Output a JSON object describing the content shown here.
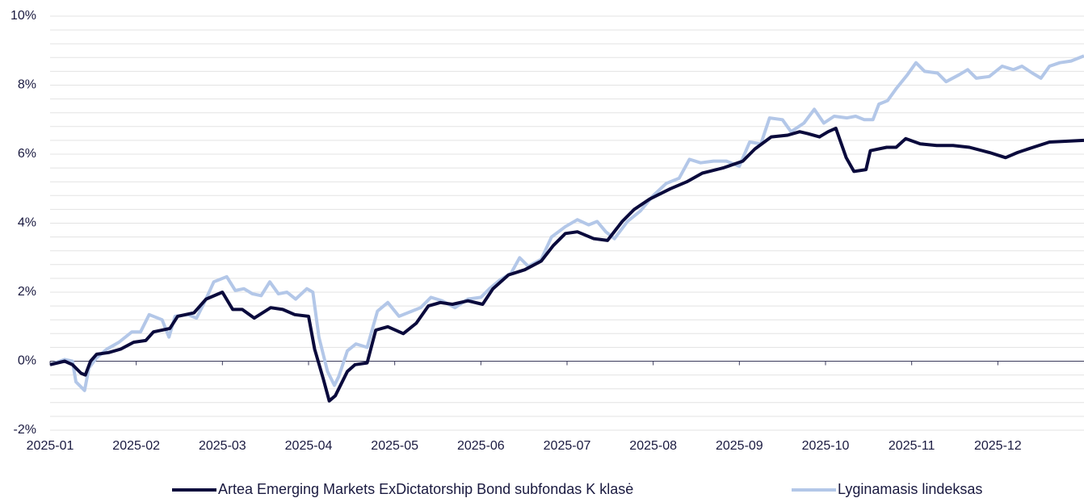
{
  "chart_data": {
    "type": "line",
    "xlim": [
      0,
      12
    ],
    "xticks": [
      {
        "value": 0,
        "label": "2025-01"
      },
      {
        "value": 1,
        "label": "2025-02"
      },
      {
        "value": 2,
        "label": "2025-03"
      },
      {
        "value": 3,
        "label": "2025-04"
      },
      {
        "value": 4,
        "label": "2025-05"
      },
      {
        "value": 5,
        "label": "2025-06"
      },
      {
        "value": 6,
        "label": "2025-07"
      },
      {
        "value": 7,
        "label": "2025-08"
      },
      {
        "value": 8,
        "label": "2025-09"
      },
      {
        "value": 9,
        "label": "2025-10"
      },
      {
        "value": 10,
        "label": "2025-11"
      },
      {
        "value": 11,
        "label": "2025-12"
      }
    ],
    "ylim": [
      -2,
      10
    ],
    "yticks": [
      {
        "value": -2,
        "label": "-2%"
      },
      {
        "value": 0,
        "label": "0%"
      },
      {
        "value": 2,
        "label": "2%"
      },
      {
        "value": 4,
        "label": "4%"
      },
      {
        "value": 6,
        "label": "6%"
      },
      {
        "value": 8,
        "label": "8%"
      },
      {
        "value": 10,
        "label": "10%"
      }
    ],
    "yticks_minor": [
      -1.6,
      -1.2,
      -0.8,
      -0.4,
      0.4,
      0.8,
      1.2,
      1.6,
      2.4,
      2.8,
      3.2,
      3.6,
      4.4,
      4.8,
      5.2,
      5.6,
      6.4,
      6.8,
      7.2,
      7.6,
      8.4,
      8.8,
      9.2,
      9.6
    ],
    "grid": true,
    "legend": "bottom",
    "series": [
      {
        "name": "Artea Emerging Markets ExDictatorship Bond subfondas K klasė",
        "color": "#0a0a3c",
        "x": [
          0,
          0.17,
          0.26,
          0.36,
          0.41,
          0.47,
          0.54,
          0.68,
          0.82,
          0.97,
          1.11,
          1.2,
          1.39,
          1.48,
          1.67,
          1.81,
          2.0,
          2.12,
          2.23,
          2.37,
          2.56,
          2.7,
          2.84,
          3.0,
          3.07,
          3.17,
          3.24,
          3.31,
          3.45,
          3.54,
          3.68,
          3.78,
          3.92,
          4.1,
          4.25,
          4.39,
          4.53,
          4.67,
          4.85,
          5.02,
          5.14,
          5.32,
          5.51,
          5.7,
          5.84,
          5.98,
          6.12,
          6.31,
          6.47,
          6.64,
          6.78,
          6.96,
          7.2,
          7.39,
          7.57,
          7.81,
          8.04,
          8.18,
          8.37,
          8.56,
          8.7,
          8.79,
          8.93,
          9.03,
          9.12,
          9.24,
          9.33,
          9.47,
          9.52,
          9.71,
          9.82,
          9.93,
          10.1,
          10.29,
          10.48,
          10.67,
          10.9,
          11.09,
          11.23,
          11.41,
          11.6,
          12.0
        ],
        "values": [
          -0.1,
          0.0,
          -0.1,
          -0.35,
          -0.4,
          0,
          0.2,
          0.25,
          0.35,
          0.55,
          0.6,
          0.85,
          0.95,
          1.3,
          1.4,
          1.8,
          2.0,
          1.5,
          1.5,
          1.25,
          1.55,
          1.5,
          1.35,
          1.3,
          0.35,
          -0.5,
          -1.15,
          -1.0,
          -0.3,
          -0.1,
          -0.05,
          0.9,
          1.0,
          0.8,
          1.1,
          1.6,
          1.7,
          1.65,
          1.75,
          1.65,
          2.1,
          2.5,
          2.65,
          2.9,
          3.35,
          3.7,
          3.75,
          3.55,
          3.5,
          4.05,
          4.4,
          4.7,
          5.0,
          5.2,
          5.45,
          5.6,
          5.8,
          6.15,
          6.5,
          6.55,
          6.65,
          6.6,
          6.5,
          6.65,
          6.75,
          5.9,
          5.5,
          5.55,
          6.1,
          6.2,
          6.2,
          6.45,
          6.3,
          6.25,
          6.25,
          6.2,
          6.05,
          5.9,
          6.05,
          6.2,
          6.35,
          6.4
        ]
      },
      {
        "name": "Lyginamasis lindeksas",
        "color": "#b3c7e8",
        "x": [
          0,
          0.17,
          0.26,
          0.3,
          0.4,
          0.45,
          0.54,
          0.66,
          0.8,
          0.95,
          1.05,
          1.15,
          1.3,
          1.38,
          1.45,
          1.6,
          1.7,
          1.8,
          1.9,
          2.05,
          2.15,
          2.25,
          2.35,
          2.45,
          2.55,
          2.65,
          2.75,
          2.85,
          2.98,
          3.05,
          3.12,
          3.22,
          3.3,
          3.35,
          3.45,
          3.55,
          3.68,
          3.8,
          3.92,
          4.05,
          4.2,
          4.3,
          4.42,
          4.55,
          4.7,
          4.85,
          5.0,
          5.1,
          5.22,
          5.35,
          5.45,
          5.55,
          5.7,
          5.82,
          5.98,
          6.12,
          6.25,
          6.35,
          6.45,
          6.55,
          6.7,
          6.85,
          7.0,
          7.15,
          7.3,
          7.42,
          7.55,
          7.7,
          7.85,
          8.0,
          8.12,
          8.25,
          8.35,
          8.5,
          8.6,
          8.75,
          8.87,
          8.98,
          9.1,
          9.25,
          9.35,
          9.45,
          9.55,
          9.62,
          9.72,
          9.82,
          9.95,
          10.05,
          10.15,
          10.3,
          10.4,
          10.55,
          10.65,
          10.75,
          10.9,
          11.05,
          11.18,
          11.28,
          11.4,
          11.5,
          11.6,
          11.72,
          11.85,
          12.0
        ],
        "values": [
          -0.1,
          0.05,
          0.0,
          -0.6,
          -0.85,
          -0.2,
          0.1,
          0.35,
          0.55,
          0.85,
          0.85,
          1.35,
          1.2,
          0.7,
          1.3,
          1.35,
          1.25,
          1.75,
          2.3,
          2.45,
          2.05,
          2.1,
          1.95,
          1.9,
          2.3,
          1.95,
          2.0,
          1.8,
          2.1,
          2.0,
          0.7,
          -0.3,
          -0.7,
          -0.45,
          0.3,
          0.5,
          0.4,
          1.45,
          1.7,
          1.3,
          1.45,
          1.55,
          1.85,
          1.75,
          1.55,
          1.8,
          1.85,
          2.1,
          2.35,
          2.55,
          3.0,
          2.75,
          2.95,
          3.6,
          3.9,
          4.1,
          3.95,
          4.05,
          3.75,
          3.55,
          4.05,
          4.35,
          4.8,
          5.15,
          5.3,
          5.85,
          5.75,
          5.8,
          5.8,
          5.65,
          6.35,
          6.3,
          7.05,
          7.0,
          6.65,
          6.9,
          7.3,
          6.9,
          7.1,
          7.05,
          7.1,
          7.0,
          7.0,
          7.45,
          7.55,
          7.9,
          8.3,
          8.65,
          8.4,
          8.35,
          8.1,
          8.3,
          8.45,
          8.2,
          8.25,
          8.55,
          8.45,
          8.55,
          8.35,
          8.2,
          8.55,
          8.65,
          8.7,
          8.85
        ]
      }
    ]
  }
}
